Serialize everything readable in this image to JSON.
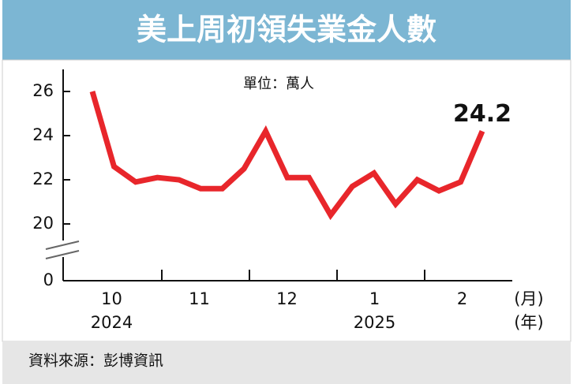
{
  "chart_data": {
    "type": "line",
    "title": "美上周初領失業金人數",
    "unit_note": "單位：萬人",
    "source": "資料來源：彭博資訊",
    "annotation": {
      "text": "24.2",
      "index": 18
    },
    "month_labels": [
      "10",
      "11",
      "12",
      "1",
      "2"
    ],
    "year_labels": [
      "2024",
      null,
      null,
      "2025",
      null
    ],
    "x_unit": "(月)",
    "year_unit": "(年)",
    "series": [
      {
        "color": "#e8262b",
        "values": [
          26.0,
          22.6,
          21.9,
          22.1,
          22.0,
          21.6,
          21.6,
          22.5,
          24.2,
          22.1,
          22.1,
          20.4,
          21.7,
          22.3,
          20.9,
          22.0,
          21.5,
          21.9,
          24.2
        ]
      }
    ],
    "ylim": [
      0,
      27
    ],
    "yticks": [
      0,
      20,
      22,
      24,
      26
    ],
    "axis_break": [
      0,
      20
    ]
  }
}
